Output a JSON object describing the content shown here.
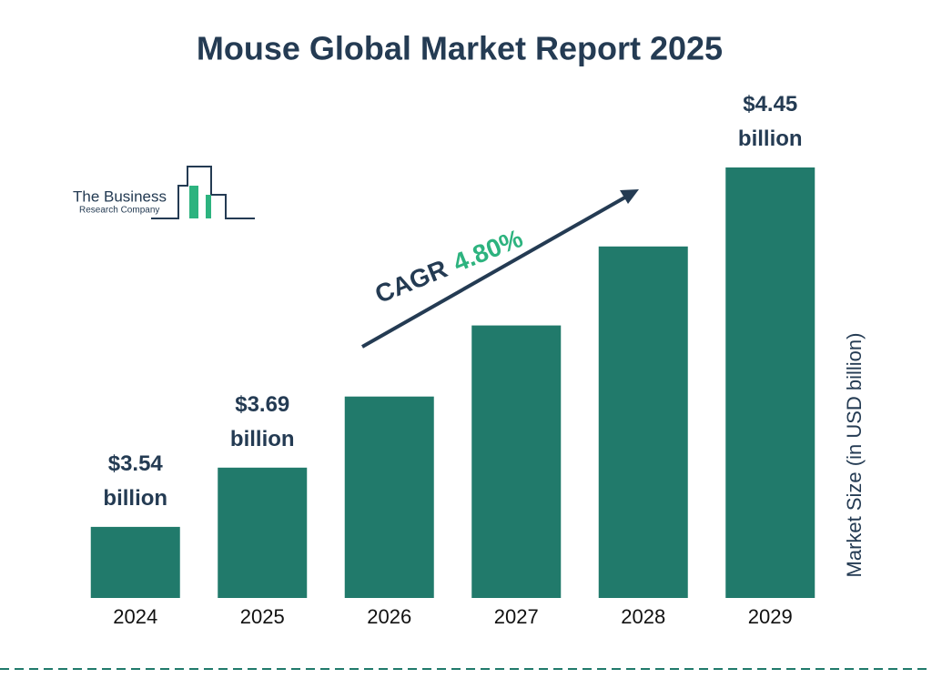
{
  "chart_data": {
    "type": "bar",
    "title": "Mouse Global Market Report 2025",
    "categories": [
      "2024",
      "2025",
      "2026",
      "2027",
      "2028",
      "2029"
    ],
    "values": [
      3.54,
      3.69,
      3.87,
      4.05,
      4.25,
      4.45
    ],
    "value_labels": [
      "$3.54 billion",
      "$3.69 billion",
      null,
      null,
      null,
      "$4.45 billion"
    ],
    "color": "#217a6b",
    "ylim": [
      3.36,
      4.45
    ],
    "y_label": "Market Size (in USD billion)",
    "annotation": {
      "label": "CAGR",
      "value": "4.80%"
    },
    "logo": {
      "line1": "The Business",
      "line2": "Research Company"
    }
  }
}
